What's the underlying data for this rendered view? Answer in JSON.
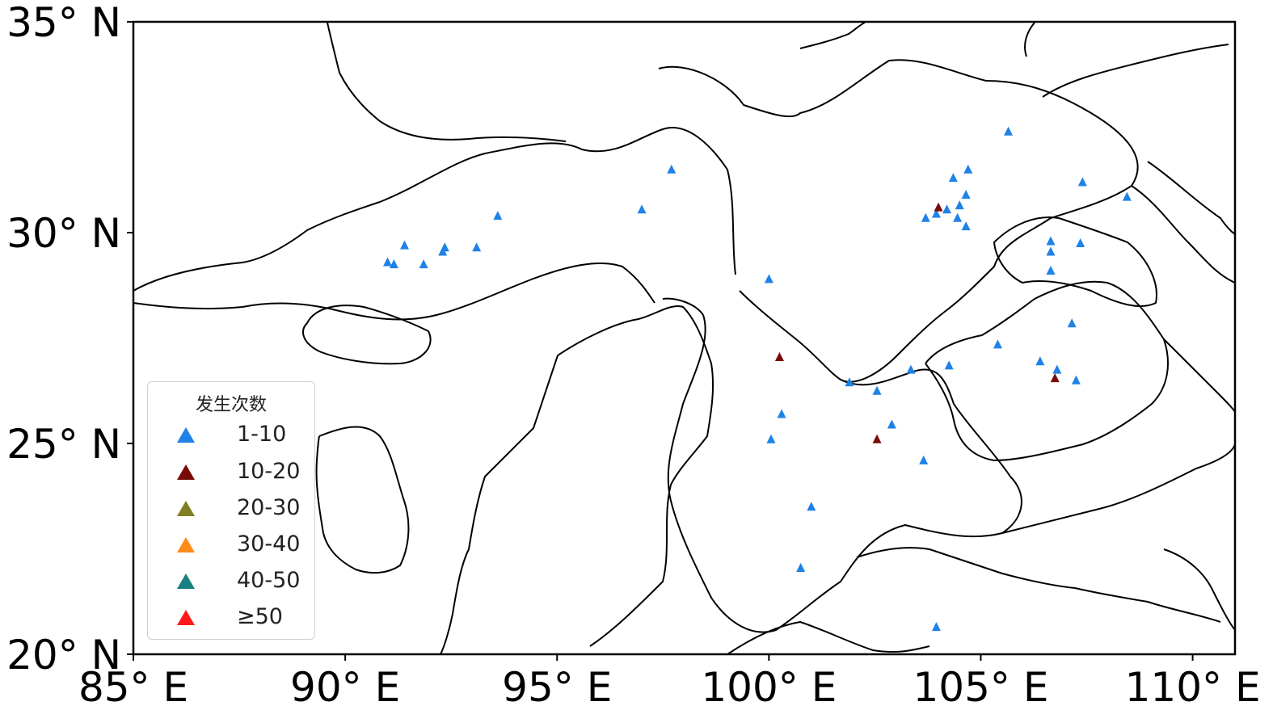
{
  "map": {
    "x_ticks": [
      "85° E",
      "90° E",
      "95° E",
      "100° E",
      "105° E",
      "110° E"
    ],
    "y_ticks": [
      "35° N",
      "30° N",
      "25° N",
      "20° N"
    ],
    "x_range": [
      85,
      111
    ],
    "y_range": [
      20,
      35
    ]
  },
  "legend": {
    "title": "发生次数",
    "items": [
      {
        "label": "1-10",
        "color": "#1e82e6"
      },
      {
        "label": "10-20",
        "color": "#7a0a0a"
      },
      {
        "label": "20-30",
        "color": "#808020"
      },
      {
        "label": "30-40",
        "color": "#ff8c1a"
      },
      {
        "label": "40-50",
        "color": "#1a8080"
      },
      {
        "label": "≥50",
        "color": "#ff1a1a"
      }
    ]
  },
  "stations": [
    {
      "lon": 91.0,
      "lat": 29.3,
      "cat": 0
    },
    {
      "lon": 91.15,
      "lat": 29.25,
      "cat": 0
    },
    {
      "lon": 91.4,
      "lat": 29.7,
      "cat": 0
    },
    {
      "lon": 91.85,
      "lat": 29.25,
      "cat": 0
    },
    {
      "lon": 92.3,
      "lat": 29.55,
      "cat": 0
    },
    {
      "lon": 92.35,
      "lat": 29.65,
      "cat": 0
    },
    {
      "lon": 93.1,
      "lat": 29.65,
      "cat": 0
    },
    {
      "lon": 93.6,
      "lat": 30.4,
      "cat": 0
    },
    {
      "lon": 97.0,
      "lat": 30.55,
      "cat": 0
    },
    {
      "lon": 97.7,
      "lat": 31.5,
      "cat": 0
    },
    {
      "lon": 100.0,
      "lat": 28.9,
      "cat": 0
    },
    {
      "lon": 100.25,
      "lat": 27.05,
      "cat": 1
    },
    {
      "lon": 100.3,
      "lat": 25.7,
      "cat": 0
    },
    {
      "lon": 100.05,
      "lat": 25.1,
      "cat": 0
    },
    {
      "lon": 101.0,
      "lat": 23.5,
      "cat": 0
    },
    {
      "lon": 100.75,
      "lat": 22.05,
      "cat": 0
    },
    {
      "lon": 101.9,
      "lat": 26.45,
      "cat": 0
    },
    {
      "lon": 102.55,
      "lat": 26.25,
      "cat": 0
    },
    {
      "lon": 102.9,
      "lat": 25.45,
      "cat": 0
    },
    {
      "lon": 102.55,
      "lat": 25.1,
      "cat": 1
    },
    {
      "lon": 103.35,
      "lat": 26.75,
      "cat": 0
    },
    {
      "lon": 103.65,
      "lat": 24.6,
      "cat": 0
    },
    {
      "lon": 103.7,
      "lat": 30.35,
      "cat": 0
    },
    {
      "lon": 103.95,
      "lat": 30.45,
      "cat": 0
    },
    {
      "lon": 104.0,
      "lat": 30.6,
      "cat": 1
    },
    {
      "lon": 104.2,
      "lat": 30.55,
      "cat": 0
    },
    {
      "lon": 104.35,
      "lat": 31.3,
      "cat": 0
    },
    {
      "lon": 104.45,
      "lat": 30.35,
      "cat": 0
    },
    {
      "lon": 104.5,
      "lat": 30.65,
      "cat": 0
    },
    {
      "lon": 104.65,
      "lat": 30.9,
      "cat": 0
    },
    {
      "lon": 104.7,
      "lat": 31.5,
      "cat": 0
    },
    {
      "lon": 104.65,
      "lat": 30.15,
      "cat": 0
    },
    {
      "lon": 104.25,
      "lat": 26.85,
      "cat": 0
    },
    {
      "lon": 103.95,
      "lat": 20.65,
      "cat": 0
    },
    {
      "lon": 105.65,
      "lat": 32.4,
      "cat": 0
    },
    {
      "lon": 105.4,
      "lat": 27.35,
      "cat": 0
    },
    {
      "lon": 106.65,
      "lat": 29.8,
      "cat": 0
    },
    {
      "lon": 106.65,
      "lat": 29.55,
      "cat": 0
    },
    {
      "lon": 106.65,
      "lat": 29.1,
      "cat": 0
    },
    {
      "lon": 106.4,
      "lat": 26.95,
      "cat": 0
    },
    {
      "lon": 106.75,
      "lat": 26.55,
      "cat": 1
    },
    {
      "lon": 106.8,
      "lat": 26.75,
      "cat": 0
    },
    {
      "lon": 107.15,
      "lat": 27.85,
      "cat": 0
    },
    {
      "lon": 107.25,
      "lat": 26.5,
      "cat": 0
    },
    {
      "lon": 107.35,
      "lat": 29.75,
      "cat": 0
    },
    {
      "lon": 107.4,
      "lat": 31.2,
      "cat": 0
    },
    {
      "lon": 108.45,
      "lat": 30.85,
      "cat": 0
    }
  ]
}
